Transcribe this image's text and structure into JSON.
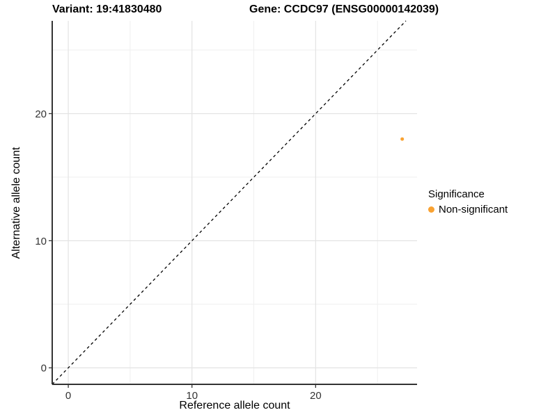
{
  "titles": {
    "variant": "Variant: 19:41830480",
    "gene": "Gene: CCDC97 (ENSG00000142039)"
  },
  "axes": {
    "x_label": "Reference allele count",
    "y_label": "Alternative allele count"
  },
  "legend": {
    "title": "Significance",
    "items": [
      {
        "label": "Non-significant",
        "color": "#F9A232"
      }
    ]
  },
  "chart_data": {
    "type": "scatter",
    "title": "Variant: 19:41830480   Gene: CCDC97 (ENSG00000142039)",
    "xlabel": "Reference allele count",
    "ylabel": "Alternative allele count",
    "xlim": [
      -1.3,
      28.2
    ],
    "ylim": [
      -1.3,
      27.3
    ],
    "x_breaks": [
      0,
      10,
      20
    ],
    "y_breaks": [
      0,
      10,
      20
    ],
    "x_minor_breaks": [
      5,
      15,
      25
    ],
    "y_minor_breaks": [
      5,
      15,
      25
    ],
    "grid": true,
    "legend_position": "right",
    "diagonal_line": {
      "equation": "y = x",
      "style": "dashed",
      "color": "#000000"
    },
    "series": [
      {
        "name": "Non-significant",
        "color": "#F9A232",
        "points": [
          {
            "x": 27,
            "y": 18
          }
        ]
      }
    ],
    "style": {
      "point_radius_px": 2.5,
      "axis_line_color": "#333333",
      "tick_label_color": "#333333",
      "grid_major_color": "#e3e3e3",
      "grid_minor_color": "#efefef",
      "background": "#ffffff"
    }
  }
}
